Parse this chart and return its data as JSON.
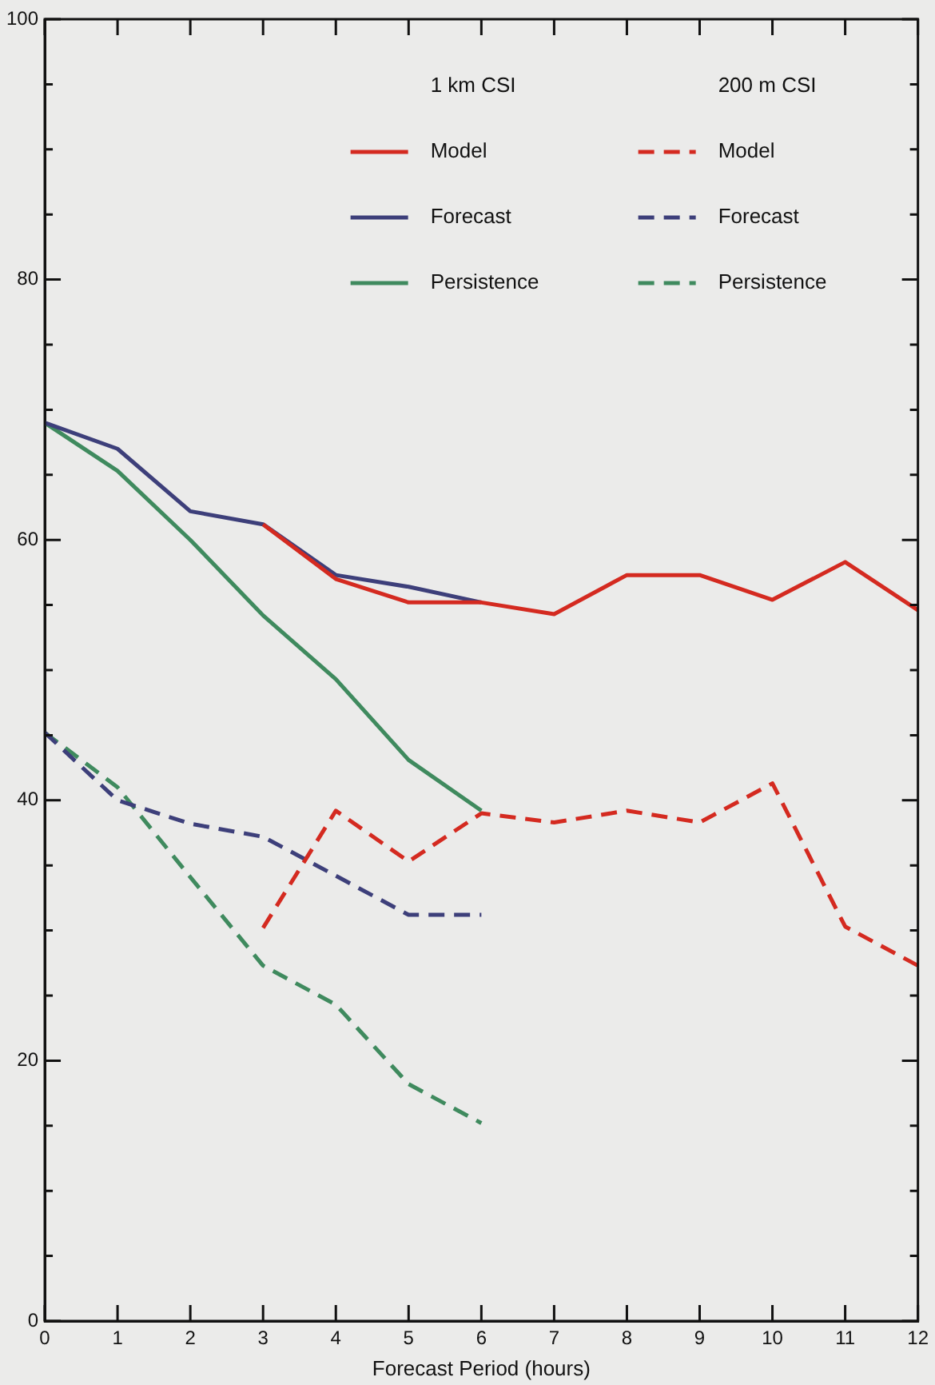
{
  "chart_data": {
    "type": "line",
    "xlabel": "Forecast Period (hours)",
    "xlim": [
      0,
      12
    ],
    "xticks": [
      0,
      1,
      2,
      3,
      4,
      5,
      6,
      7,
      8,
      9,
      10,
      11,
      12
    ],
    "ylim": [
      0,
      100
    ],
    "yticks": [
      0,
      {
        "value": 5,
        "label": null
      },
      {
        "value": 10,
        "label": null
      },
      {
        "value": 15,
        "label": null
      },
      20,
      {
        "value": 25,
        "label": null
      },
      {
        "value": 30,
        "label": null
      },
      {
        "value": 35,
        "label": null
      },
      40,
      {
        "value": 45,
        "label": null
      },
      {
        "value": 50,
        "label": null
      },
      {
        "value": 55,
        "label": null
      },
      60,
      {
        "value": 65,
        "label": null
      },
      {
        "value": 70,
        "label": null
      },
      {
        "value": 75,
        "label": null
      },
      80,
      {
        "value": 85,
        "label": null
      },
      {
        "value": 90,
        "label": null
      },
      {
        "value": 95,
        "label": null
      },
      100
    ],
    "grid": false,
    "marker": "none",
    "legend": "top right",
    "annotations": [
      "1 km CSI",
      "200 m CSI"
    ],
    "series": [
      {
        "name": "Model",
        "color": "#d42a20",
        "line_style": "solid",
        "x": [
          3,
          4,
          5,
          6,
          7,
          8,
          9,
          10,
          11,
          12
        ],
        "values": [
          61.2,
          57,
          55.2,
          55.2,
          54.3,
          57.3,
          57.3,
          55.4,
          58.3,
          54.6
        ]
      },
      {
        "name": "Forecast",
        "color": "#3d3f7a",
        "line_style": "solid",
        "x": [
          0,
          1,
          2,
          3,
          4,
          5,
          6
        ],
        "values": [
          69,
          67,
          62.2,
          61.2,
          57.3,
          56.4,
          55.2
        ]
      },
      {
        "name": "Persistence",
        "color": "#3f8a5e",
        "line_style": "solid",
        "x": [
          0,
          1,
          2,
          3,
          4,
          5,
          6
        ],
        "values": [
          69,
          65.3,
          60,
          54.2,
          49.3,
          43.1,
          39.2
        ]
      },
      {
        "name": "Model",
        "color": "#d42a20",
        "line_style": "dashed",
        "x": [
          3,
          4,
          5,
          6,
          7,
          8,
          9,
          10,
          11,
          12
        ],
        "values": [
          30.2,
          39.2,
          35.3,
          39,
          38.3,
          39.2,
          38.3,
          41.3,
          30.3,
          27.3
        ]
      },
      {
        "name": "Forecast",
        "color": "#3d3f7a",
        "line_style": "dashed",
        "x": [
          0,
          1,
          2,
          3,
          4,
          5,
          6
        ],
        "values": [
          45.2,
          40,
          38.2,
          37.2,
          34.2,
          31.2,
          31.2
        ]
      },
      {
        "name": "Persistence",
        "color": "#3f8a5e",
        "line_style": "dashed",
        "x": [
          0,
          1,
          2,
          3,
          4,
          5,
          6
        ],
        "values": [
          45.2,
          41,
          34.1,
          27.3,
          24.3,
          18.2,
          15.2
        ]
      }
    ]
  }
}
